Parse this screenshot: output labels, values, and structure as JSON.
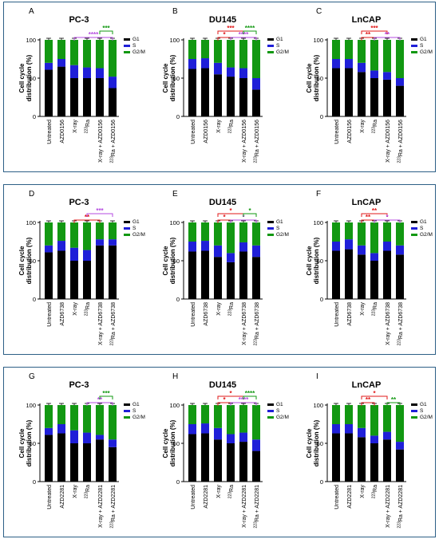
{
  "legend_labels": [
    "G1",
    "S",
    "G2/M"
  ],
  "colors": {
    "g1": "#000000",
    "s": "#1f1fd8",
    "g2m": "#129812",
    "sig_red": "#e01818",
    "sig_purple": "#b44be0",
    "sig_green": "#129812",
    "frame": "#2d5f86"
  },
  "ylabel": [
    "Cell cycle",
    "distribution (%)"
  ],
  "yticks": [
    "0",
    "50",
    "100"
  ],
  "rows": [
    {
      "panels": [
        {
          "letter": "A",
          "title": "PC-3",
          "categories": [
            "Untreated",
            "AZD0156",
            "X-ray",
            "223Ra",
            "X-ray + AZD0156",
            "223Ra + AZD0156"
          ],
          "sig": [
            {
              "from": 2,
              "to": 5,
              "color": "purple",
              "label": "****",
              "level": 1
            },
            {
              "from": 4,
              "to": 5,
              "color": "green",
              "label": "***",
              "level": 2
            }
          ]
        },
        {
          "letter": "B",
          "title": "DU145",
          "categories": [
            "Untreated",
            "AZD0156",
            "X-ray",
            "223Ra",
            "X-ray + AZD0156",
            "223Ra + AZD0156"
          ],
          "sig": [
            {
              "from": 2,
              "to": 3,
              "color": "red",
              "label": "*",
              "level": 1
            },
            {
              "from": 2,
              "to": 4,
              "color": "red",
              "label": "***",
              "level": 2
            },
            {
              "from": 3,
              "to": 5,
              "color": "purple",
              "label": "****",
              "level": 1
            },
            {
              "from": 4,
              "to": 5,
              "color": "green",
              "label": "****",
              "level": 2
            }
          ]
        },
        {
          "letter": "C",
          "title": "LnCAP",
          "categories": [
            "Untreated",
            "AZD0156",
            "X-ray",
            "223Ra",
            "X-ray + AZD0156",
            "223Ra + AZD0156"
          ],
          "sig": [
            {
              "from": 2,
              "to": 3,
              "color": "red",
              "label": "**",
              "level": 1
            },
            {
              "from": 2,
              "to": 4,
              "color": "red",
              "label": "***",
              "level": 2
            },
            {
              "from": 3,
              "to": 5,
              "color": "purple",
              "label": "**",
              "level": 1
            }
          ]
        }
      ]
    },
    {
      "panels": [
        {
          "letter": "D",
          "title": "PC-3",
          "categories": [
            "Untreated",
            "AZD6738",
            "X-ray",
            "223Ra",
            "X-ray + AZD6738",
            "223Ra + AZD6738"
          ],
          "sig": [
            {
              "from": 2,
              "to": 4,
              "color": "red",
              "label": "**",
              "level": 1
            },
            {
              "from": 3,
              "to": 5,
              "color": "purple",
              "label": "***",
              "level": 2
            }
          ]
        },
        {
          "letter": "E",
          "title": "DU145",
          "categories": [
            "Untreated",
            "AZD6738",
            "X-ray",
            "223Ra",
            "X-ray + AZD6738",
            "223Ra + AZD6738"
          ],
          "sig": [
            {
              "from": 2,
              "to": 3,
              "color": "red",
              "label": "*",
              "level": 1
            },
            {
              "from": 2,
              "to": 4,
              "color": "red",
              "label": "*",
              "level": 2
            },
            {
              "from": 3,
              "to": 5,
              "color": "purple",
              "label": "*",
              "level": 1
            },
            {
              "from": 4,
              "to": 5,
              "color": "green",
              "label": "*",
              "level": 2
            }
          ]
        },
        {
          "letter": "F",
          "title": "LnCAP",
          "categories": [
            "Untreated",
            "AZD6738",
            "X-ray",
            "223Ra",
            "X-ray + AZD6738",
            "223Ra + AZD6738"
          ],
          "sig": [
            {
              "from": 2,
              "to": 3,
              "color": "red",
              "label": "**",
              "level": 1
            },
            {
              "from": 2,
              "to": 4,
              "color": "red",
              "label": "**",
              "level": 2
            },
            {
              "from": 3,
              "to": 5,
              "color": "purple",
              "label": "*",
              "level": 1
            }
          ]
        }
      ]
    },
    {
      "panels": [
        {
          "letter": "G",
          "title": "PC-3",
          "categories": [
            "Untreated",
            "AZD2281",
            "X-ray",
            "223Ra",
            "X-ray + AZD2281",
            "223Ra + AZD2281"
          ],
          "sig": [
            {
              "from": 3,
              "to": 5,
              "color": "purple",
              "label": "**",
              "level": 1
            },
            {
              "from": 4,
              "to": 5,
              "color": "green",
              "label": "***",
              "level": 2
            }
          ]
        },
        {
          "letter": "H",
          "title": "DU145",
          "categories": [
            "Untreated",
            "AZD2281",
            "X-ray",
            "223Ra",
            "X-ray + AZD2281",
            "223Ra + AZD2281"
          ],
          "sig": [
            {
              "from": 2,
              "to": 3,
              "color": "red",
              "label": "*",
              "level": 1
            },
            {
              "from": 2,
              "to": 4,
              "color": "red",
              "label": "*",
              "level": 2
            },
            {
              "from": 3,
              "to": 5,
              "color": "purple",
              "label": "****",
              "level": 1
            },
            {
              "from": 4,
              "to": 5,
              "color": "green",
              "label": "****",
              "level": 2
            }
          ]
        },
        {
          "letter": "I",
          "title": "LnCAP",
          "categories": [
            "Untreated",
            "AZD2281",
            "X-ray",
            "223Ra",
            "X-ray + AZD2281",
            "223Ra + AZD2281"
          ],
          "sig": [
            {
              "from": 2,
              "to": 3,
              "color": "red",
              "label": "**",
              "level": 1
            },
            {
              "from": 2,
              "to": 4,
              "color": "red",
              "label": "*",
              "level": 2
            },
            {
              "from": 4,
              "to": 5,
              "color": "green",
              "label": "**",
              "level": 1
            }
          ]
        }
      ]
    }
  ],
  "chart_data": [
    {
      "type": "bar",
      "stacked": true,
      "title": "PC-3",
      "ylabel": "Cell cycle distribution (%)",
      "ylim": [
        0,
        100
      ],
      "categories": [
        "Untreated",
        "AZD0156",
        "X-ray",
        "223Ra",
        "X-ray + AZD0156",
        "223Ra + AZD0156"
      ],
      "series": [
        {
          "name": "G1",
          "values": [
            61,
            65,
            50,
            50,
            50,
            37
          ]
        },
        {
          "name": "S",
          "values": [
            9,
            10,
            17,
            14,
            13,
            15
          ]
        },
        {
          "name": "G2/M",
          "values": [
            30,
            25,
            33,
            36,
            37,
            48
          ]
        }
      ]
    },
    {
      "type": "bar",
      "stacked": true,
      "title": "DU145",
      "ylabel": "Cell cycle distribution (%)",
      "ylim": [
        0,
        100
      ],
      "categories": [
        "Untreated",
        "AZD0156",
        "X-ray",
        "223Ra",
        "X-ray + AZD0156",
        "223Ra + AZD0156"
      ],
      "series": [
        {
          "name": "G1",
          "values": [
            62,
            63,
            55,
            52,
            50,
            35
          ]
        },
        {
          "name": "S",
          "values": [
            13,
            13,
            15,
            12,
            13,
            15
          ]
        },
        {
          "name": "G2/M",
          "values": [
            25,
            24,
            30,
            36,
            37,
            50
          ]
        }
      ]
    },
    {
      "type": "bar",
      "stacked": true,
      "title": "LnCAP",
      "ylabel": "Cell cycle distribution (%)",
      "ylim": [
        0,
        100
      ],
      "categories": [
        "Untreated",
        "AZD0156",
        "X-ray",
        "223Ra",
        "X-ray + AZD0156",
        "223Ra + AZD0156"
      ],
      "series": [
        {
          "name": "G1",
          "values": [
            63,
            63,
            58,
            50,
            48,
            40
          ]
        },
        {
          "name": "S",
          "values": [
            12,
            12,
            12,
            10,
            10,
            10
          ]
        },
        {
          "name": "G2/M",
          "values": [
            25,
            25,
            30,
            40,
            42,
            50
          ]
        }
      ]
    },
    {
      "type": "bar",
      "stacked": true,
      "title": "PC-3",
      "ylabel": "Cell cycle distribution (%)",
      "ylim": [
        0,
        100
      ],
      "categories": [
        "Untreated",
        "AZD6738",
        "X-ray",
        "223Ra",
        "X-ray + AZD6738",
        "223Ra + AZD6738"
      ],
      "series": [
        {
          "name": "G1",
          "values": [
            61,
            63,
            50,
            50,
            70,
            70
          ]
        },
        {
          "name": "S",
          "values": [
            9,
            13,
            17,
            14,
            8,
            8
          ]
        },
        {
          "name": "G2/M",
          "values": [
            30,
            24,
            33,
            36,
            22,
            22
          ]
        }
      ]
    },
    {
      "type": "bar",
      "stacked": true,
      "title": "DU145",
      "ylabel": "Cell cycle distribution (%)",
      "ylim": [
        0,
        100
      ],
      "categories": [
        "Untreated",
        "AZD6738",
        "X-ray",
        "223Ra",
        "X-ray + AZD6738",
        "223Ra + AZD6738"
      ],
      "series": [
        {
          "name": "G1",
          "values": [
            62,
            63,
            55,
            48,
            62,
            55
          ]
        },
        {
          "name": "S",
          "values": [
            13,
            13,
            15,
            12,
            12,
            15
          ]
        },
        {
          "name": "G2/M",
          "values": [
            25,
            24,
            30,
            40,
            26,
            30
          ]
        }
      ]
    },
    {
      "type": "bar",
      "stacked": true,
      "title": "LnCAP",
      "ylabel": "Cell cycle distribution (%)",
      "ylim": [
        0,
        100
      ],
      "categories": [
        "Untreated",
        "AZD6738",
        "X-ray",
        "223Ra",
        "X-ray + AZD6738",
        "223Ra + AZD6738"
      ],
      "series": [
        {
          "name": "G1",
          "values": [
            63,
            65,
            58,
            50,
            63,
            58
          ]
        },
        {
          "name": "S",
          "values": [
            12,
            13,
            12,
            10,
            12,
            12
          ]
        },
        {
          "name": "G2/M",
          "values": [
            25,
            22,
            30,
            40,
            25,
            30
          ]
        }
      ]
    },
    {
      "type": "bar",
      "stacked": true,
      "title": "PC-3",
      "ylabel": "Cell cycle distribution (%)",
      "ylim": [
        0,
        100
      ],
      "categories": [
        "Untreated",
        "AZD2281",
        "X-ray",
        "223Ra",
        "X-ray + AZD2281",
        "223Ra + AZD2281"
      ],
      "series": [
        {
          "name": "G1",
          "values": [
            61,
            63,
            50,
            50,
            55,
            45
          ]
        },
        {
          "name": "S",
          "values": [
            9,
            12,
            17,
            14,
            6,
            10
          ]
        },
        {
          "name": "G2/M",
          "values": [
            30,
            25,
            33,
            36,
            39,
            45
          ]
        }
      ]
    },
    {
      "type": "bar",
      "stacked": true,
      "title": "DU145",
      "ylabel": "Cell cycle distribution (%)",
      "ylim": [
        0,
        100
      ],
      "categories": [
        "Untreated",
        "AZD2281",
        "X-ray",
        "223Ra",
        "X-ray + AZD2281",
        "223Ra + AZD2281"
      ],
      "series": [
        {
          "name": "G1",
          "values": [
            62,
            63,
            55,
            50,
            52,
            40
          ]
        },
        {
          "name": "S",
          "values": [
            13,
            13,
            15,
            12,
            12,
            15
          ]
        },
        {
          "name": "G2/M",
          "values": [
            25,
            24,
            30,
            38,
            36,
            45
          ]
        }
      ]
    },
    {
      "type": "bar",
      "stacked": true,
      "title": "LnCAP",
      "ylabel": "Cell cycle distribution (%)",
      "ylim": [
        0,
        100
      ],
      "categories": [
        "Untreated",
        "AZD2281",
        "X-ray",
        "223Ra",
        "X-ray + AZD2281",
        "223Ra + AZD2281"
      ],
      "series": [
        {
          "name": "G1",
          "values": [
            63,
            63,
            58,
            50,
            55,
            42
          ]
        },
        {
          "name": "S",
          "values": [
            12,
            12,
            12,
            10,
            10,
            10
          ]
        },
        {
          "name": "G2/M",
          "values": [
            25,
            25,
            30,
            40,
            35,
            48
          ]
        }
      ]
    }
  ]
}
